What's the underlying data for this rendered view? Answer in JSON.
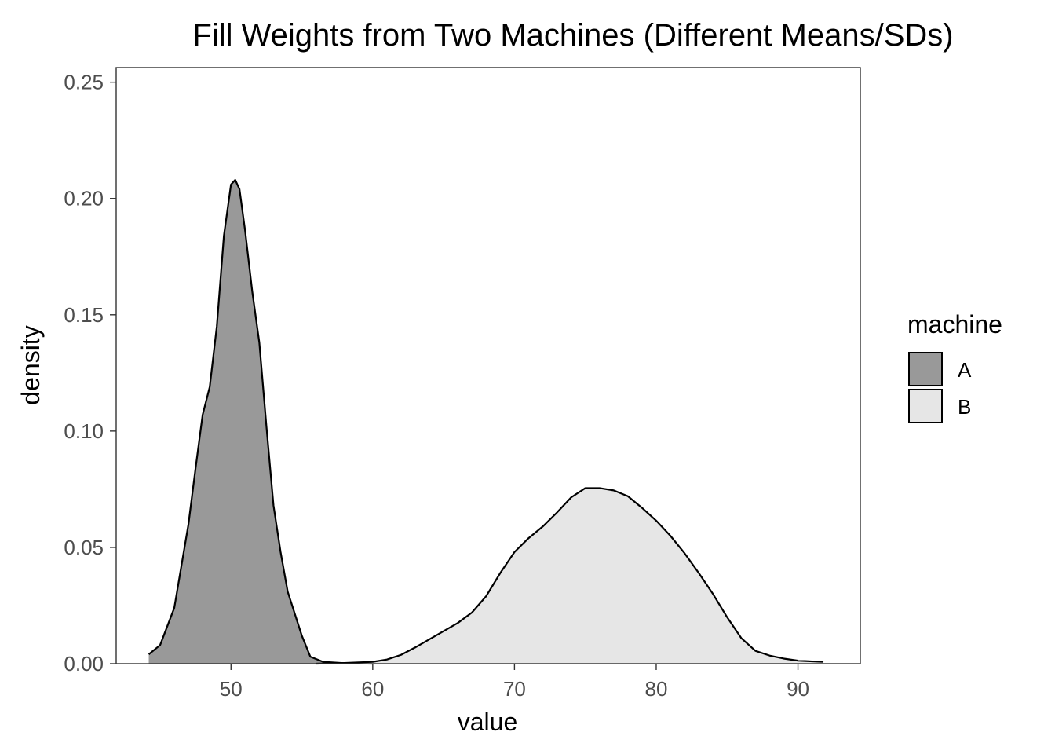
{
  "chart_data": {
    "type": "area",
    "title": "Fill Weights from Two Machines (Different Means/SDs)",
    "xlabel": "value",
    "ylabel": "density",
    "xlim": [
      41.9,
      94.4
    ],
    "ylim": [
      0,
      0.2563
    ],
    "x_ticks": [
      50,
      60,
      70,
      80,
      90
    ],
    "x_tick_labels": [
      "50",
      "60",
      "70",
      "80",
      "90"
    ],
    "y_ticks": [
      0,
      0.05,
      0.1,
      0.15,
      0.2,
      0.25
    ],
    "y_tick_labels": [
      "0.00",
      "0.05",
      "0.10",
      "0.15",
      "0.20",
      "0.25"
    ],
    "grid": false,
    "legend": {
      "title": "machine",
      "position": "right"
    },
    "series": [
      {
        "name": "A",
        "color": "#999999",
        "outline": "#000000",
        "points": [
          [
            44.2,
            0.004
          ],
          [
            45.0,
            0.008
          ],
          [
            46.0,
            0.024
          ],
          [
            47.0,
            0.06
          ],
          [
            47.5,
            0.084
          ],
          [
            48.0,
            0.107
          ],
          [
            48.5,
            0.119
          ],
          [
            49.0,
            0.145
          ],
          [
            49.5,
            0.184
          ],
          [
            50.0,
            0.206
          ],
          [
            50.3,
            0.208
          ],
          [
            50.6,
            0.204
          ],
          [
            51.0,
            0.186
          ],
          [
            51.5,
            0.16
          ],
          [
            52.0,
            0.138
          ],
          [
            52.5,
            0.102
          ],
          [
            53.0,
            0.068
          ],
          [
            53.5,
            0.048
          ],
          [
            54.0,
            0.031
          ],
          [
            55.0,
            0.012
          ],
          [
            55.6,
            0.003
          ],
          [
            56.5,
            0.0008
          ],
          [
            58.0,
            0.0002
          ],
          [
            60.0,
            0.0
          ]
        ]
      },
      {
        "name": "B",
        "color": "#e6e6e6",
        "outline": "#000000",
        "points": [
          [
            56.0,
            0.0
          ],
          [
            58.0,
            0.0003
          ],
          [
            60.0,
            0.0008
          ],
          [
            61.0,
            0.0018
          ],
          [
            62.0,
            0.0038
          ],
          [
            63.0,
            0.007
          ],
          [
            64.0,
            0.0105
          ],
          [
            65.0,
            0.014
          ],
          [
            66.0,
            0.0175
          ],
          [
            67.0,
            0.022
          ],
          [
            68.0,
            0.029
          ],
          [
            69.0,
            0.039
          ],
          [
            70.0,
            0.048
          ],
          [
            71.0,
            0.054
          ],
          [
            72.0,
            0.059
          ],
          [
            73.0,
            0.065
          ],
          [
            74.0,
            0.0715
          ],
          [
            75.0,
            0.0755
          ],
          [
            76.0,
            0.0755
          ],
          [
            77.0,
            0.0745
          ],
          [
            78.0,
            0.072
          ],
          [
            79.0,
            0.067
          ],
          [
            80.0,
            0.0615
          ],
          [
            81.0,
            0.055
          ],
          [
            82.0,
            0.0475
          ],
          [
            83.0,
            0.039
          ],
          [
            84.0,
            0.03
          ],
          [
            85.0,
            0.02
          ],
          [
            86.0,
            0.011
          ],
          [
            87.0,
            0.0055
          ],
          [
            88.0,
            0.0035
          ],
          [
            89.0,
            0.0022
          ],
          [
            90.0,
            0.0013
          ],
          [
            91.0,
            0.001
          ],
          [
            91.8,
            0.0008
          ]
        ]
      }
    ]
  }
}
